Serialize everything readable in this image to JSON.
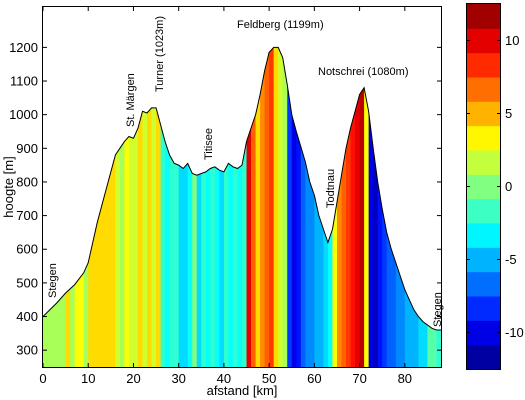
{
  "chart_data": {
    "type": "area",
    "title": "",
    "xlabel": "afstand [km]",
    "ylabel": "hoogte [m]",
    "xlim": [
      0,
      88
    ],
    "ylim": [
      250,
      1320
    ],
    "xticks": [
      "0",
      "10",
      "20",
      "30",
      "40",
      "50",
      "60",
      "70",
      "80"
    ],
    "yticks": [
      "300",
      "400",
      "500",
      "600",
      "700",
      "800",
      "900",
      "1000",
      "1100",
      "1200"
    ],
    "profile": {
      "x": [
        0,
        3,
        5,
        7,
        9,
        10,
        12,
        14,
        16,
        18,
        19,
        20,
        21,
        22,
        23,
        24,
        25,
        26,
        27,
        28,
        29,
        30,
        31,
        32,
        33,
        34,
        35,
        36,
        37,
        38,
        39,
        40,
        41,
        42,
        43,
        44,
        45,
        46,
        47,
        48,
        49,
        50,
        51,
        52,
        53,
        54,
        55,
        56,
        57,
        58,
        59,
        60,
        61,
        62,
        63,
        64,
        65,
        66,
        67,
        68,
        69,
        70,
        71,
        72,
        73,
        74,
        75,
        76,
        77,
        78,
        79,
        80,
        81,
        82,
        83,
        84,
        85,
        86,
        87,
        88
      ],
      "y": [
        400,
        440,
        470,
        495,
        530,
        560,
        680,
        780,
        880,
        920,
        935,
        930,
        960,
        1010,
        1005,
        1020,
        1020,
        970,
        920,
        880,
        855,
        850,
        840,
        855,
        825,
        820,
        825,
        830,
        840,
        845,
        835,
        830,
        855,
        845,
        840,
        850,
        920,
        960,
        1000,
        1060,
        1130,
        1185,
        1200,
        1200,
        1170,
        1090,
        1000,
        950,
        905,
        860,
        800,
        760,
        700,
        660,
        620,
        660,
        740,
        820,
        900,
        960,
        1010,
        1060,
        1080,
        1010,
        900,
        800,
        720,
        650,
        600,
        560,
        520,
        480,
        450,
        420,
        400,
        385,
        375,
        365,
        360,
        360
      ]
    },
    "gradient": {
      "x": [
        0,
        5,
        6,
        7,
        9,
        10,
        16,
        17,
        18,
        19,
        21,
        22,
        23,
        24,
        25,
        26,
        27,
        28,
        30,
        32,
        33,
        34,
        35,
        36,
        37,
        38,
        39,
        40,
        41,
        42,
        43,
        44,
        45,
        46,
        47,
        48,
        49,
        50,
        51,
        52,
        53,
        54,
        55,
        56,
        57,
        58,
        60,
        62,
        63,
        64,
        65,
        66,
        67,
        68,
        69,
        70,
        71,
        72,
        73,
        74,
        75,
        76,
        78,
        80,
        83,
        85,
        87
      ],
      "values": [
        1,
        4,
        1,
        3,
        1,
        4,
        2,
        1,
        3,
        2,
        4,
        2,
        4,
        2,
        4,
        -2,
        -3,
        -2,
        -4,
        -3,
        0,
        -4,
        -2,
        -3,
        -2,
        -3,
        -4,
        -2,
        -3,
        -2,
        -3,
        -2,
        10,
        7,
        4,
        6,
        7,
        8,
        4,
        2,
        1,
        -8,
        -10,
        -9,
        -7,
        -6,
        -5,
        -4,
        -3,
        3,
        6,
        7,
        8,
        9,
        10,
        11,
        3,
        -10,
        -11,
        -9,
        -8,
        -7,
        -6,
        -5,
        -4,
        -1,
        -2
      ]
    },
    "annotations": [
      "Stegen",
      "St. Märgen",
      "Turner (1023m)",
      "Titisee",
      "Feldberg (1199m)",
      "Todtnau",
      "Notschrei (1080m)",
      "Stegen"
    ],
    "colorbar": {
      "colormap": "jet",
      "range": [
        -12.5,
        12.5
      ],
      "ticks": [
        "10",
        "5",
        "0",
        "-5",
        "-10"
      ]
    }
  }
}
